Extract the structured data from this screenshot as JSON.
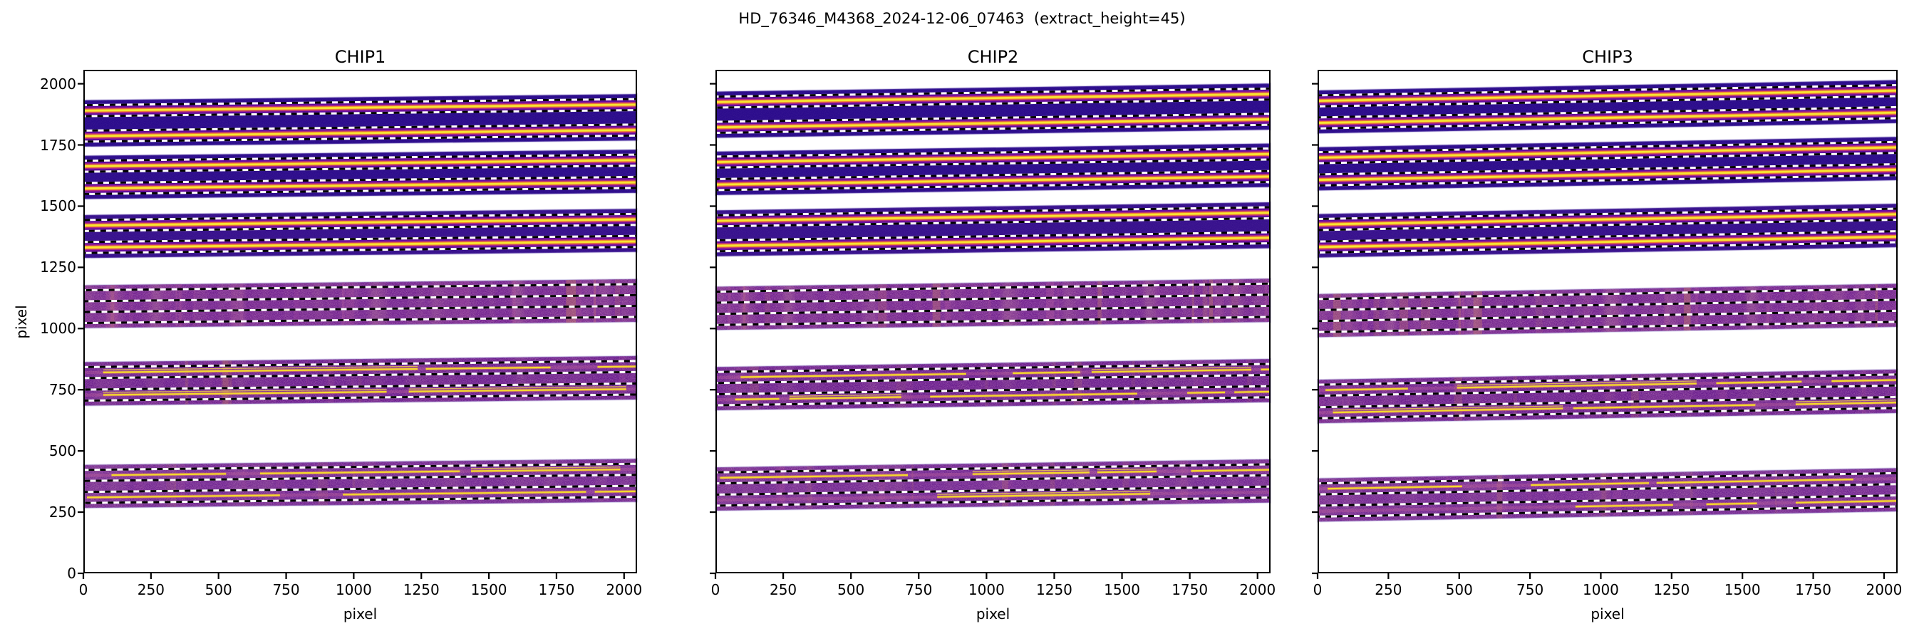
{
  "figure": {
    "title": "HD_76346_M4368_2024-12-06_07463  (extract_height=45)",
    "extract_height": 45,
    "background": "#ffffff",
    "text_color": "#000000"
  },
  "colors": {
    "spine": "#000000",
    "dash_white": "#ffffff",
    "dash_black": "#000000",
    "band_edge_fringe": "#8d7cc8",
    "deep_band_bg": "#2a0b8c",
    "trace_layers": [
      {
        "width": 13,
        "color": "#6e09a0",
        "opacity": 0.85
      },
      {
        "width": 8,
        "color": "#b5307f",
        "opacity": 0.9
      },
      {
        "width": 5,
        "color": "#ef7f33",
        "opacity": 1
      },
      {
        "width": 2.8,
        "color": "#f8e431",
        "opacity": 1
      }
    ],
    "broken_trace": {
      "halo": "#e98f3e",
      "core": "#f7df2b",
      "double": "#f2cf4a"
    },
    "stripe_colors": [
      "#e89a4e",
      "#c05da0"
    ],
    "noise_pink": "#c05da0"
  },
  "axes": {
    "xlabel": "pixel",
    "ylabel": "pixel",
    "x_ticks": [
      0,
      250,
      500,
      750,
      1000,
      1250,
      1500,
      1750,
      2000
    ],
    "y_ticks": [
      0,
      250,
      500,
      750,
      1000,
      1250,
      1500,
      1750,
      2000
    ],
    "xlim": [
      0,
      2048
    ],
    "ylim": [
      0,
      2057
    ]
  },
  "chart_data": [
    {
      "type": "heatmap",
      "title": "CHIP1",
      "xlabel": "pixel",
      "ylabel": "pixel",
      "extract_half_height": 22.5,
      "orders": [
        {
          "band_y": [
            1743,
            1933
          ],
          "traces_y": [
            1890,
            1786
          ],
          "rise": 25,
          "bg": "#2a0b8c",
          "style": "bright"
        },
        {
          "band_y": [
            1529,
            1706
          ],
          "traces_y": [
            1663,
            1572
          ],
          "rise": 25,
          "bg": "#2c0c8c",
          "style": "bright"
        },
        {
          "band_y": [
            1288,
            1464
          ],
          "traces_y": [
            1421,
            1331
          ],
          "rise": 25,
          "bg": "#36108d",
          "style": "bright"
        },
        {
          "band_y": [
            1002,
            1177
          ],
          "traces_y": [
            1134,
            1045
          ],
          "rise": 25,
          "bg": "#70208f",
          "style": "faint"
        },
        {
          "band_y": [
            685,
            863
          ],
          "traces_y": [
            820,
            728
          ],
          "rise": 25,
          "bg": "#671a8d",
          "style": "broken",
          "coverage": 0.88
        },
        {
          "band_y": [
            267,
            443
          ],
          "traces_y": [
            400,
            310
          ],
          "rise": 25,
          "bg": "#6e2391",
          "style": "broken",
          "coverage": 0.6
        }
      ]
    },
    {
      "type": "heatmap",
      "title": "CHIP2",
      "xlabel": "pixel",
      "ylabel": "pixel",
      "extract_half_height": 22.5,
      "orders": [
        {
          "band_y": [
            1779,
            1968
          ],
          "traces_y": [
            1925,
            1822
          ],
          "rise": 33,
          "bg": "#2a0b8c",
          "style": "bright"
        },
        {
          "band_y": [
            1545,
            1723
          ],
          "traces_y": [
            1680,
            1588
          ],
          "rise": 33,
          "bg": "#2c0c8c",
          "style": "bright"
        },
        {
          "band_y": [
            1295,
            1483
          ],
          "traces_y": [
            1440,
            1338
          ],
          "rise": 33,
          "bg": "#36108d",
          "style": "bright"
        },
        {
          "band_y": [
            994,
            1171
          ],
          "traces_y": [
            1128,
            1037
          ],
          "rise": 33,
          "bg": "#70208f",
          "style": "faint"
        },
        {
          "band_y": [
            666,
            843
          ],
          "traces_y": [
            800,
            709
          ],
          "rise": 33,
          "bg": "#671a8d",
          "style": "broken",
          "coverage": 0.72
        },
        {
          "band_y": [
            256,
            433
          ],
          "traces_y": [
            390,
            299
          ],
          "rise": 33,
          "bg": "#6e2391",
          "style": "broken",
          "coverage": 0.55
        }
      ]
    },
    {
      "type": "heatmap",
      "title": "CHIP3",
      "xlabel": "pixel",
      "ylabel": "pixel",
      "extract_half_height": 22.5,
      "orders": [
        {
          "band_y": [
            1797,
            1973
          ],
          "traces_y": [
            1930,
            1840
          ],
          "rise": 42,
          "bg": "#2a0b8c",
          "style": "bright"
        },
        {
          "band_y": [
            1564,
            1741
          ],
          "traces_y": [
            1698,
            1607
          ],
          "rise": 42,
          "bg": "#2c0c8c",
          "style": "bright"
        },
        {
          "band_y": [
            1290,
            1468
          ],
          "traces_y": [
            1425,
            1333
          ],
          "rise": 42,
          "bg": "#36108d",
          "style": "bright"
        },
        {
          "band_y": [
            965,
            1141
          ],
          "traces_y": [
            1098,
            1008
          ],
          "rise": 42,
          "bg": "#70208f",
          "style": "faint"
        },
        {
          "band_y": [
            613,
            791
          ],
          "traces_y": [
            748,
            656
          ],
          "rise": 42,
          "bg": "#671a8d",
          "style": "broken",
          "coverage": 0.7
        },
        {
          "band_y": [
            211,
            388
          ],
          "traces_y": [
            345,
            254
          ],
          "rise": 42,
          "bg": "#6e2391",
          "style": "broken",
          "coverage": 0.5
        }
      ]
    }
  ]
}
